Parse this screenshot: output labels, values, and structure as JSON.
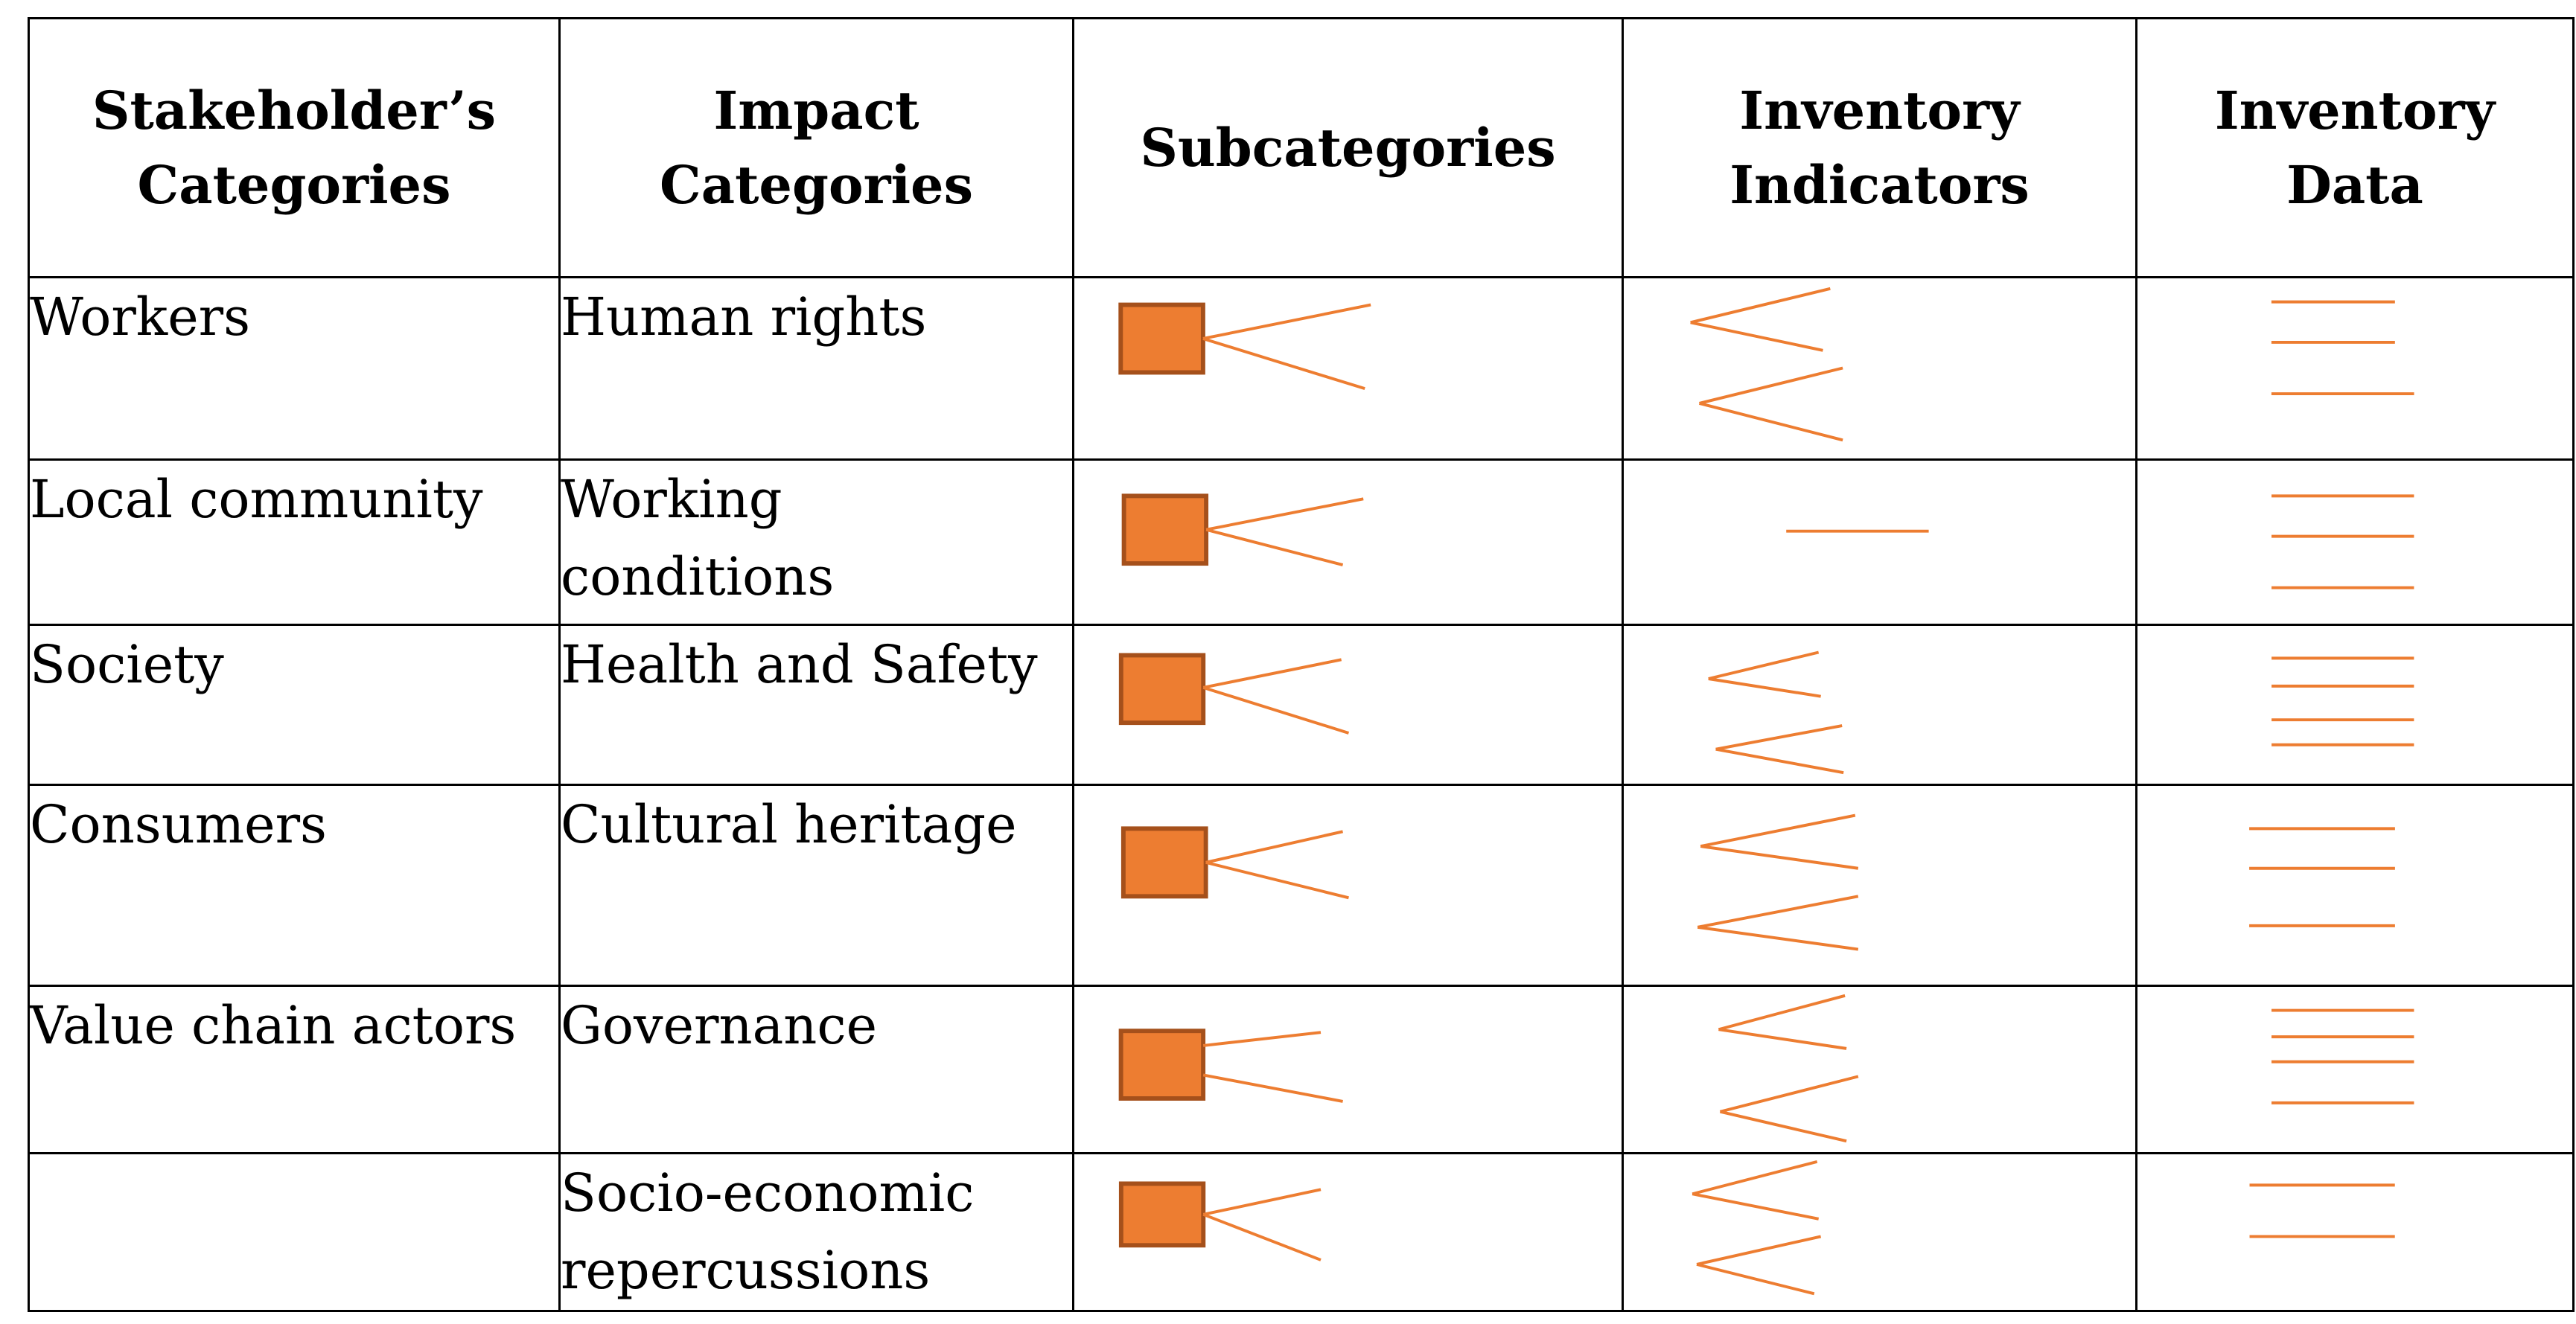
{
  "headers": {
    "stakeholder": "Stakeholder’s Categories",
    "impact": "Impact Categories",
    "subcategories": "Subcategories",
    "indicators": "Inventory Indicators",
    "data": "Inventory Data"
  },
  "rows": [
    {
      "stakeholder": "Workers",
      "impact": "Human rights"
    },
    {
      "stakeholder": "Local community",
      "impact": "Working conditions"
    },
    {
      "stakeholder": "Society",
      "impact": "Health and Safety"
    },
    {
      "stakeholder": "Consumers",
      "impact": "Cultural heritage"
    },
    {
      "stakeholder": "Value chain actors",
      "impact": "Governance"
    },
    {
      "stakeholder": "",
      "impact": "Socio-economic repercussions"
    }
  ],
  "colors": {
    "accent": "#ED7D31",
    "accent_border": "#A5501B",
    "grid": "#000000"
  },
  "icons": {
    "subcategory_marker": "orange-square-branch-icon",
    "indicator_marker": "branching-lines-icon",
    "data_marker": "horizontal-lines-icon"
  }
}
